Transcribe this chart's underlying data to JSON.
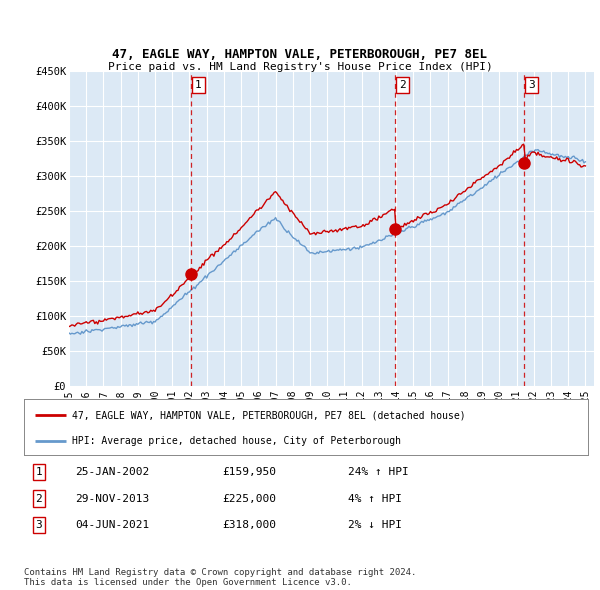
{
  "title": "47, EAGLE WAY, HAMPTON VALE, PETERBOROUGH, PE7 8EL",
  "subtitle": "Price paid vs. HM Land Registry's House Price Index (HPI)",
  "ylim": [
    0,
    450000
  ],
  "yticks": [
    0,
    50000,
    100000,
    150000,
    200000,
    250000,
    300000,
    350000,
    400000,
    450000
  ],
  "ytick_labels": [
    "£0",
    "£50K",
    "£100K",
    "£150K",
    "£200K",
    "£250K",
    "£300K",
    "£350K",
    "£400K",
    "£450K"
  ],
  "xlim_start": 1995.0,
  "xlim_end": 2025.5,
  "bg_color": "#ffffff",
  "plot_bg_color": "#dce9f5",
  "grid_color": "#ffffff",
  "transactions": [
    {
      "id": 1,
      "year": 2002.07,
      "price": 159950,
      "label": "25-JAN-2002",
      "amount": "£159,950",
      "hpi_pct": "24% ↑ HPI"
    },
    {
      "id": 2,
      "year": 2013.92,
      "price": 225000,
      "label": "29-NOV-2013",
      "amount": "£225,000",
      "hpi_pct": "4% ↑ HPI"
    },
    {
      "id": 3,
      "year": 2021.42,
      "price": 318000,
      "label": "04-JUN-2021",
      "amount": "£318,000",
      "hpi_pct": "2% ↓ HPI"
    }
  ],
  "red_line_color": "#cc0000",
  "blue_line_color": "#6699cc",
  "marker_color": "#cc0000",
  "vline_color": "#cc0000",
  "legend_label_red": "47, EAGLE WAY, HAMPTON VALE, PETERBOROUGH, PE7 8EL (detached house)",
  "legend_label_blue": "HPI: Average price, detached house, City of Peterborough",
  "footer": "Contains HM Land Registry data © Crown copyright and database right 2024.\nThis data is licensed under the Open Government Licence v3.0.",
  "xtick_years": [
    1995,
    1996,
    1997,
    1998,
    1999,
    2000,
    2001,
    2002,
    2003,
    2004,
    2005,
    2006,
    2007,
    2008,
    2009,
    2010,
    2011,
    2012,
    2013,
    2014,
    2015,
    2016,
    2017,
    2018,
    2019,
    2020,
    2021,
    2022,
    2023,
    2024,
    2025
  ]
}
